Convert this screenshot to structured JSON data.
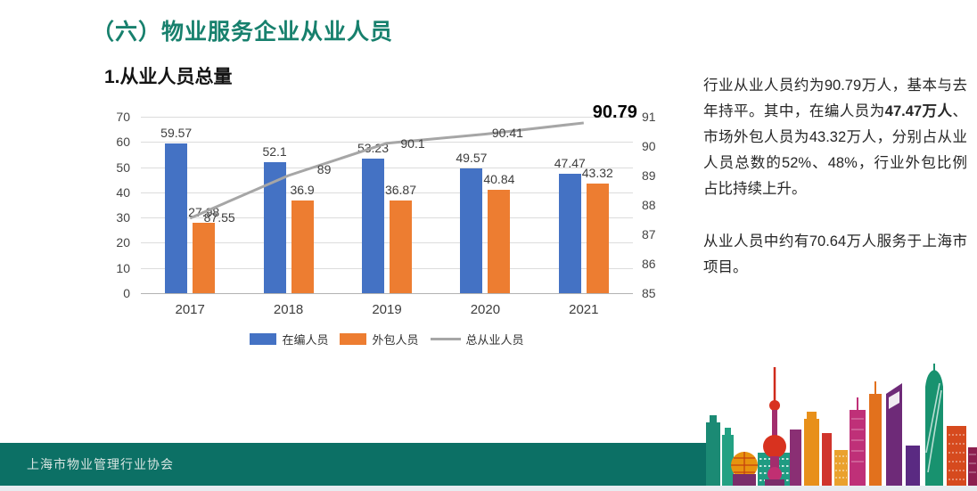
{
  "header": {
    "title": "（六）物业服务企业从业人员"
  },
  "chart": {
    "subtitle": "1.从业人员总量"
  },
  "chart_data": {
    "type": "bar",
    "subtype": "grouped-bar-with-secondary-axis-line",
    "categories": [
      "2017",
      "2018",
      "2019",
      "2020",
      "2021"
    ],
    "series": [
      {
        "name": "在编人员",
        "type": "bar",
        "axis": "left",
        "color": "#4472c4",
        "values": [
          59.57,
          52.1,
          53.23,
          49.57,
          47.47
        ]
      },
      {
        "name": "外包人员",
        "type": "bar",
        "axis": "left",
        "color": "#ed7d31",
        "values": [
          27.98,
          36.9,
          36.87,
          40.84,
          43.32
        ]
      },
      {
        "name": "总从业人员",
        "type": "line",
        "axis": "right",
        "color": "#a6a6a6",
        "values": [
          87.55,
          89,
          90.1,
          90.41,
          90.79
        ]
      }
    ],
    "left_axis": {
      "min": 0,
      "max": 70,
      "step": 10
    },
    "right_axis": {
      "min": 85,
      "max": 91,
      "step": 1
    },
    "grid": true,
    "data_labels": true,
    "legend_position": "bottom",
    "highlighted_label": "90.79"
  },
  "aside": {
    "p1_before_bold": "行业从业人员约为90.79万人，基本与去年持平。其中，在编人员为",
    "p1_bold": "47.47万人",
    "p1_after_bold": "、市场外包人员为43.32万人，分别占从业人员总数的52%、48%，行业外包比例占比持续上升。",
    "p2": "从业人员中约有70.64万人服务于上海市项目。"
  },
  "footer": {
    "organization": "上海市物业管理行业协会"
  },
  "colors": {
    "title_green": "#17806d",
    "footer_green": "#0c7065",
    "bar_blue": "#4472c4",
    "bar_orange": "#ed7d31",
    "line_gray": "#a6a6a6"
  }
}
